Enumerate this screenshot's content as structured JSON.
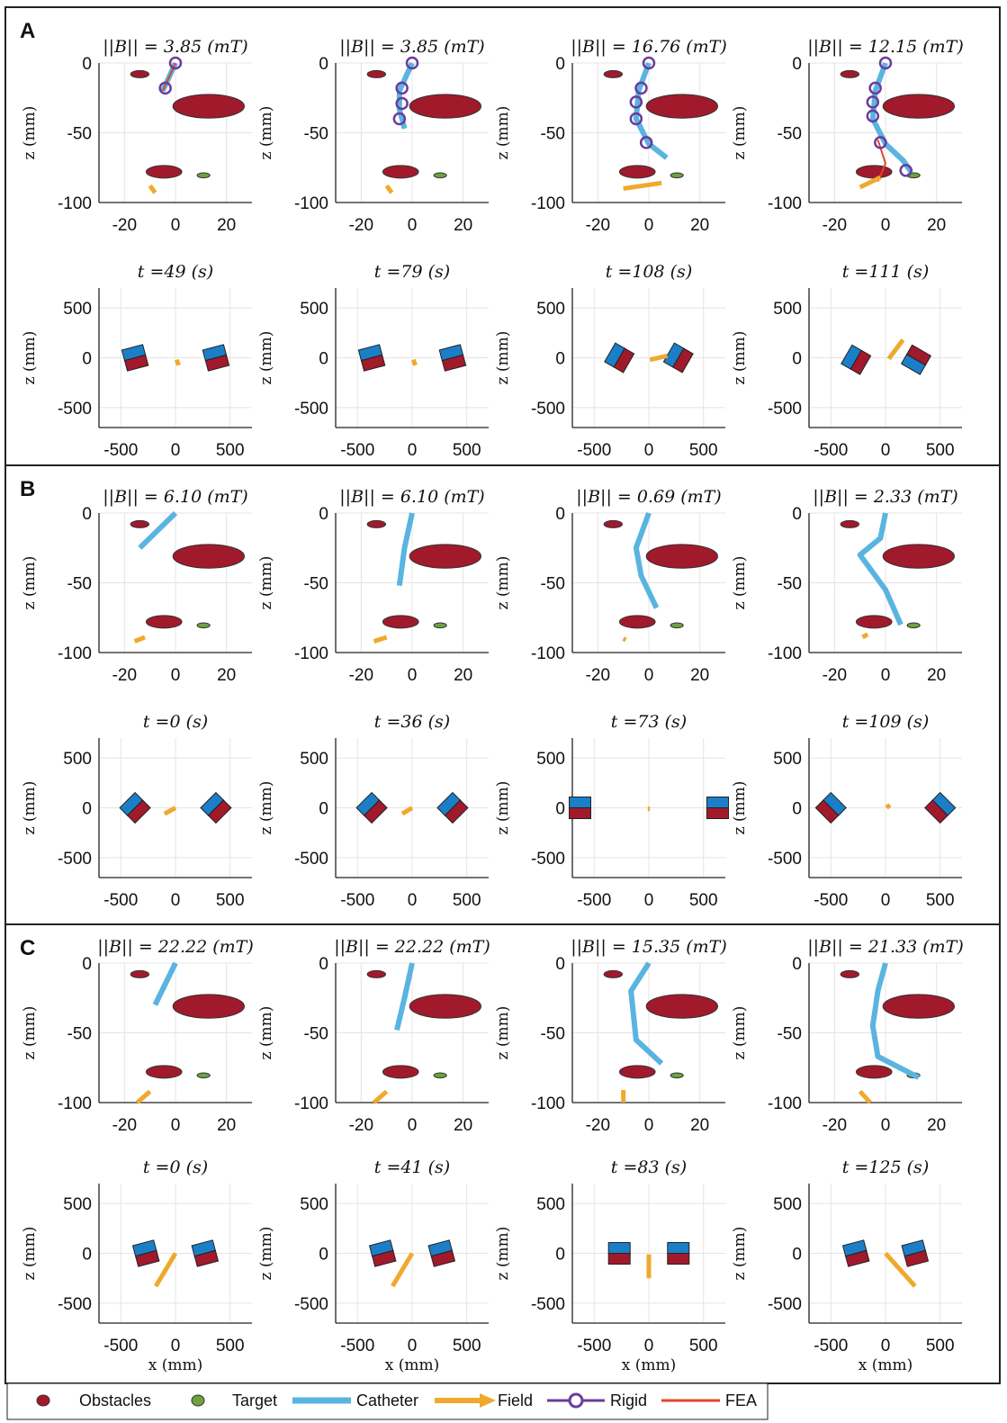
{
  "figure": {
    "legend": {
      "obstacles": "Obstacles",
      "target": "Target",
      "catheter": "Catheter",
      "field": "Field",
      "rigid": "Rigid",
      "fea": "FEA"
    },
    "axis_labels": {
      "x": "x (mm)",
      "z": "z (mm)"
    },
    "colors": {
      "obstacle": "#a01a2c",
      "target": "#6ca33e",
      "catheter": "#5ab4e0",
      "field": "#f0a92c",
      "rigid": "#6a3c9c",
      "fea": "#e0462a",
      "magnet_blue": "#1b7fc8",
      "magnet_red": "#a01a2c"
    },
    "panels": [
      {
        "label": "A"
      },
      {
        "label": "B"
      },
      {
        "label": "C"
      }
    ]
  },
  "chart_data": [
    {
      "type": "scatter",
      "panel": "A",
      "col": 0,
      "kind": "workspace",
      "title": "||B|| = 3.85 (mT)",
      "xlim": [
        -30,
        30
      ],
      "ylim": [
        -100,
        0
      ],
      "xticks": [
        -20,
        0,
        20
      ],
      "yticks": [
        0,
        -50,
        -100
      ],
      "catheter": [
        [
          0,
          0
        ],
        [
          -5,
          -20
        ]
      ],
      "field": [
        [
          -10,
          -88
        ],
        [
          -8,
          -93
        ]
      ],
      "rigid": [
        [
          0,
          0
        ],
        [
          -4,
          -18
        ]
      ],
      "fea": [
        [
          0,
          0
        ],
        [
          -5,
          -20
        ]
      ]
    },
    {
      "type": "scatter",
      "panel": "A",
      "col": 1,
      "kind": "workspace",
      "title": "||B|| = 3.85 (mT)",
      "xlim": [
        -30,
        30
      ],
      "ylim": [
        -100,
        0
      ],
      "xticks": [
        -20,
        0,
        20
      ],
      "yticks": [
        0,
        -50,
        -100
      ],
      "catheter": [
        [
          0,
          0
        ],
        [
          -5,
          -20
        ],
        [
          -5,
          -33
        ],
        [
          -3,
          -47
        ]
      ],
      "field": [
        [
          -10,
          -88
        ],
        [
          -8,
          -93
        ]
      ],
      "rigid": [
        [
          0,
          0
        ],
        [
          -4,
          -18
        ],
        [
          -4,
          -29
        ],
        [
          -5,
          -40
        ]
      ],
      "fea": []
    },
    {
      "type": "scatter",
      "panel": "A",
      "col": 2,
      "kind": "workspace",
      "title": "||B|| = 16.76 (mT)",
      "xlim": [
        -30,
        30
      ],
      "ylim": [
        -100,
        0
      ],
      "xticks": [
        -20,
        0,
        20
      ],
      "yticks": [
        0,
        -50,
        -100
      ],
      "catheter": [
        [
          0,
          0
        ],
        [
          -4,
          -20
        ],
        [
          -5,
          -40
        ],
        [
          0,
          -58
        ],
        [
          7,
          -68
        ]
      ],
      "field": [
        [
          -10,
          -90
        ],
        [
          5,
          -86
        ]
      ],
      "rigid": [
        [
          0,
          0
        ],
        [
          -3,
          -18
        ],
        [
          -5,
          -28
        ],
        [
          -5,
          -40
        ],
        [
          -1,
          -57
        ]
      ],
      "fea": []
    },
    {
      "type": "scatter",
      "panel": "A",
      "col": 3,
      "kind": "workspace",
      "title": "||B|| = 12.15 (mT)",
      "xlim": [
        -30,
        30
      ],
      "ylim": [
        -100,
        0
      ],
      "xticks": [
        -20,
        0,
        20
      ],
      "yticks": [
        0,
        -50,
        -100
      ],
      "catheter": [
        [
          0,
          0
        ],
        [
          -4,
          -20
        ],
        [
          -5,
          -40
        ],
        [
          0,
          -58
        ],
        [
          7,
          -70
        ],
        [
          10,
          -78
        ]
      ],
      "field": [
        [
          -10,
          -89
        ],
        [
          -2,
          -82
        ]
      ],
      "rigid": [
        [
          0,
          0
        ],
        [
          -4,
          -18
        ],
        [
          -5,
          -28
        ],
        [
          -5,
          -38
        ],
        [
          -2,
          -57
        ],
        [
          8,
          -77
        ]
      ],
      "fea": [
        [
          -3,
          -55
        ],
        [
          0,
          -72
        ],
        [
          -3,
          -85
        ]
      ]
    },
    {
      "type": "scatter",
      "panel": "A",
      "col": 0,
      "kind": "magnet",
      "title": "t =49 (s)",
      "xlim": [
        -700,
        700
      ],
      "ylim": [
        -700,
        700
      ],
      "xticks": [
        -500,
        0,
        500
      ],
      "yticks": [
        500,
        0,
        -500
      ],
      "magnets": [
        [
          -370,
          0,
          -15
        ],
        [
          370,
          0,
          -15
        ]
      ],
      "field": [
        [
          10,
          -20
        ],
        [
          30,
          -75
        ]
      ]
    },
    {
      "type": "scatter",
      "panel": "A",
      "col": 1,
      "kind": "magnet",
      "title": "t =79 (s)",
      "xlim": [
        -700,
        700
      ],
      "ylim": [
        -700,
        700
      ],
      "xticks": [
        -500,
        0,
        500
      ],
      "yticks": [
        500,
        0,
        -500
      ],
      "magnets": [
        [
          -370,
          0,
          -15
        ],
        [
          370,
          0,
          -15
        ]
      ],
      "field": [
        [
          10,
          -20
        ],
        [
          30,
          -75
        ]
      ]
    },
    {
      "type": "scatter",
      "panel": "A",
      "col": 2,
      "kind": "magnet",
      "title": "t =108 (s)",
      "xlim": [
        -700,
        700
      ],
      "ylim": [
        -700,
        700
      ],
      "xticks": [
        -500,
        0,
        500
      ],
      "yticks": [
        500,
        0,
        -500
      ],
      "magnets": [
        [
          -270,
          0,
          -60
        ],
        [
          270,
          0,
          -60
        ]
      ],
      "field": [
        [
          10,
          -20
        ],
        [
          170,
          20
        ]
      ]
    },
    {
      "type": "scatter",
      "panel": "A",
      "col": 3,
      "kind": "magnet",
      "title": "t =111 (s)",
      "xlim": [
        -700,
        700
      ],
      "ylim": [
        -700,
        700
      ],
      "xticks": [
        -500,
        0,
        500
      ],
      "yticks": [
        500,
        0,
        -500
      ],
      "magnets": [
        [
          -270,
          -20,
          -60
        ],
        [
          280,
          -20,
          -150
        ]
      ],
      "field": [
        [
          30,
          -10
        ],
        [
          160,
          180
        ]
      ]
    },
    {
      "type": "scatter",
      "panel": "B",
      "col": 0,
      "kind": "workspace",
      "title": "||B|| = 6.10 (mT)",
      "xlim": [
        -30,
        30
      ],
      "ylim": [
        -100,
        0
      ],
      "xticks": [
        -20,
        0,
        20
      ],
      "yticks": [
        0,
        -50,
        -100
      ],
      "catheter": [
        [
          0,
          0
        ],
        [
          -14,
          -25
        ]
      ],
      "field": [
        [
          -16,
          -92
        ],
        [
          -12,
          -89
        ]
      ],
      "rigid": [],
      "fea": []
    },
    {
      "type": "scatter",
      "panel": "B",
      "col": 1,
      "kind": "workspace",
      "title": "||B|| = 6.10 (mT)",
      "xlim": [
        -30,
        30
      ],
      "ylim": [
        -100,
        0
      ],
      "xticks": [
        -20,
        0,
        20
      ],
      "yticks": [
        0,
        -50,
        -100
      ],
      "catheter": [
        [
          0,
          0
        ],
        [
          -3,
          -25
        ],
        [
          -5,
          -52
        ]
      ],
      "field": [
        [
          -15,
          -92
        ],
        [
          -10,
          -89
        ]
      ],
      "rigid": [],
      "fea": []
    },
    {
      "type": "scatter",
      "panel": "B",
      "col": 2,
      "kind": "workspace",
      "title": "||B|| = 0.69 (mT)",
      "xlim": [
        -30,
        30
      ],
      "ylim": [
        -100,
        0
      ],
      "xticks": [
        -20,
        0,
        20
      ],
      "yticks": [
        0,
        -50,
        -100
      ],
      "catheter": [
        [
          0,
          0
        ],
        [
          -5,
          -25
        ],
        [
          -3,
          -45
        ],
        [
          3,
          -68
        ]
      ],
      "field": [
        [
          -10,
          -90
        ],
        [
          -9,
          -91
        ]
      ],
      "rigid": [],
      "fea": []
    },
    {
      "type": "scatter",
      "panel": "B",
      "col": 3,
      "kind": "workspace",
      "title": "||B|| = 2.33 (mT)",
      "xlim": [
        -30,
        30
      ],
      "ylim": [
        -100,
        0
      ],
      "xticks": [
        -20,
        0,
        20
      ],
      "yticks": [
        0,
        -50,
        -100
      ],
      "catheter": [
        [
          0,
          0
        ],
        [
          -2,
          -18
        ],
        [
          -10,
          -30
        ],
        [
          0,
          -55
        ],
        [
          6,
          -80
        ]
      ],
      "field": [
        [
          -9,
          -89
        ],
        [
          -7,
          -87
        ]
      ],
      "rigid": [],
      "fea": []
    },
    {
      "type": "scatter",
      "panel": "B",
      "col": 0,
      "kind": "magnet",
      "title": "t =0 (s)",
      "xlim": [
        -700,
        700
      ],
      "ylim": [
        -700,
        700
      ],
      "xticks": [
        -500,
        0,
        500
      ],
      "yticks": [
        500,
        0,
        -500
      ],
      "magnets": [
        [
          -370,
          0,
          -45
        ],
        [
          370,
          0,
          -45
        ]
      ],
      "field": [
        [
          -100,
          -60
        ],
        [
          0,
          0
        ]
      ]
    },
    {
      "type": "scatter",
      "panel": "B",
      "col": 1,
      "kind": "magnet",
      "title": "t =36 (s)",
      "xlim": [
        -700,
        700
      ],
      "ylim": [
        -700,
        700
      ],
      "xticks": [
        -500,
        0,
        500
      ],
      "yticks": [
        500,
        0,
        -500
      ],
      "magnets": [
        [
          -370,
          0,
          -45
        ],
        [
          370,
          0,
          -45
        ]
      ],
      "field": [
        [
          -90,
          -60
        ],
        [
          0,
          0
        ]
      ]
    },
    {
      "type": "scatter",
      "panel": "B",
      "col": 2,
      "kind": "magnet",
      "title": "t =73 (s)",
      "xlim": [
        -700,
        700
      ],
      "ylim": [
        -700,
        700
      ],
      "xticks": [
        -500,
        0,
        500
      ],
      "yticks": [
        500,
        0,
        -500
      ],
      "magnets": [
        [
          -630,
          0,
          0
        ],
        [
          630,
          0,
          0
        ]
      ],
      "field": [
        [
          -10,
          -10
        ],
        [
          10,
          -10
        ]
      ]
    },
    {
      "type": "scatter",
      "panel": "B",
      "col": 3,
      "kind": "magnet",
      "title": "t =109 (s)",
      "xlim": [
        -700,
        700
      ],
      "ylim": [
        -700,
        700
      ],
      "xticks": [
        -500,
        0,
        500
      ],
      "yticks": [
        500,
        0,
        -500
      ],
      "magnets": [
        [
          -500,
          0,
          45
        ],
        [
          500,
          0,
          45
        ]
      ],
      "field": [
        [
          10,
          0
        ],
        [
          40,
          30
        ]
      ]
    },
    {
      "type": "scatter",
      "panel": "C",
      "col": 0,
      "kind": "workspace",
      "title": "||B|| = 22.22 (mT)",
      "xlim": [
        -30,
        30
      ],
      "ylim": [
        -100,
        0
      ],
      "xticks": [
        -20,
        0,
        20
      ],
      "yticks": [
        0,
        -50,
        -100
      ],
      "catheter": [
        [
          0,
          0
        ],
        [
          -8,
          -30
        ]
      ],
      "field": [
        [
          -15,
          -100
        ],
        [
          -10,
          -92
        ]
      ],
      "rigid": [],
      "fea": []
    },
    {
      "type": "scatter",
      "panel": "C",
      "col": 1,
      "kind": "workspace",
      "title": "||B|| = 22.22 (mT)",
      "xlim": [
        -30,
        30
      ],
      "ylim": [
        -100,
        0
      ],
      "xticks": [
        -20,
        0,
        20
      ],
      "yticks": [
        0,
        -50,
        -100
      ],
      "catheter": [
        [
          0,
          0
        ],
        [
          -3,
          -25
        ],
        [
          -6,
          -48
        ]
      ],
      "field": [
        [
          -15,
          -100
        ],
        [
          -10,
          -92
        ]
      ],
      "rigid": [],
      "fea": []
    },
    {
      "type": "scatter",
      "panel": "C",
      "col": 2,
      "kind": "workspace",
      "title": "||B|| = 15.35 (mT)",
      "xlim": [
        -30,
        30
      ],
      "ylim": [
        -100,
        0
      ],
      "xticks": [
        -20,
        0,
        20
      ],
      "yticks": [
        0,
        -50,
        -100
      ],
      "catheter": [
        [
          0,
          0
        ],
        [
          -7,
          -20
        ],
        [
          -5,
          -55
        ],
        [
          5,
          -72
        ]
      ],
      "field": [
        [
          -10,
          -100
        ],
        [
          -10,
          -91
        ]
      ],
      "rigid": [],
      "fea": []
    },
    {
      "type": "scatter",
      "panel": "C",
      "col": 3,
      "kind": "workspace",
      "title": "||B|| = 21.33 (mT)",
      "xlim": [
        -30,
        30
      ],
      "ylim": [
        -100,
        0
      ],
      "xticks": [
        -20,
        0,
        20
      ],
      "yticks": [
        0,
        -50,
        -100
      ],
      "catheter": [
        [
          0,
          0
        ],
        [
          -3,
          -20
        ],
        [
          -5,
          -45
        ],
        [
          -3,
          -67
        ],
        [
          13,
          -82
        ]
      ],
      "field": [
        [
          -6,
          -100
        ],
        [
          -10,
          -92
        ]
      ],
      "rigid": [],
      "fea": []
    },
    {
      "type": "scatter",
      "panel": "C",
      "col": 0,
      "kind": "magnet",
      "title": "t =0 (s)",
      "xlim": [
        -700,
        700
      ],
      "ylim": [
        -700,
        700
      ],
      "xticks": [
        -500,
        0,
        500
      ],
      "yticks": [
        500,
        0,
        -500
      ],
      "magnets": [
        [
          -270,
          0,
          -15
        ],
        [
          270,
          0,
          -15
        ]
      ],
      "field": [
        [
          -180,
          -330
        ],
        [
          0,
          0
        ]
      ]
    },
    {
      "type": "scatter",
      "panel": "C",
      "col": 1,
      "kind": "magnet",
      "title": "t =41 (s)",
      "xlim": [
        -700,
        700
      ],
      "ylim": [
        -700,
        700
      ],
      "xticks": [
        -500,
        0,
        500
      ],
      "yticks": [
        500,
        0,
        -500
      ],
      "magnets": [
        [
          -270,
          0,
          -15
        ],
        [
          270,
          0,
          -15
        ]
      ],
      "field": [
        [
          -180,
          -330
        ],
        [
          0,
          0
        ]
      ]
    },
    {
      "type": "scatter",
      "panel": "C",
      "col": 2,
      "kind": "magnet",
      "title": "t =83 (s)",
      "xlim": [
        -700,
        700
      ],
      "ylim": [
        -700,
        700
      ],
      "xticks": [
        -500,
        0,
        500
      ],
      "yticks": [
        500,
        0,
        -500
      ],
      "magnets": [
        [
          -270,
          0,
          0
        ],
        [
          270,
          0,
          0
        ]
      ],
      "field": [
        [
          0,
          -250
        ],
        [
          0,
          -10
        ]
      ]
    },
    {
      "type": "scatter",
      "panel": "C",
      "col": 3,
      "kind": "magnet",
      "title": "t =125 (s)",
      "xlim": [
        -700,
        700
      ],
      "ylim": [
        -700,
        700
      ],
      "xticks": [
        -500,
        0,
        500
      ],
      "yticks": [
        500,
        0,
        -500
      ],
      "magnets": [
        [
          -270,
          0,
          -15
        ],
        [
          270,
          0,
          -15
        ]
      ],
      "field": [
        [
          270,
          -330
        ],
        [
          0,
          0
        ]
      ]
    }
  ]
}
